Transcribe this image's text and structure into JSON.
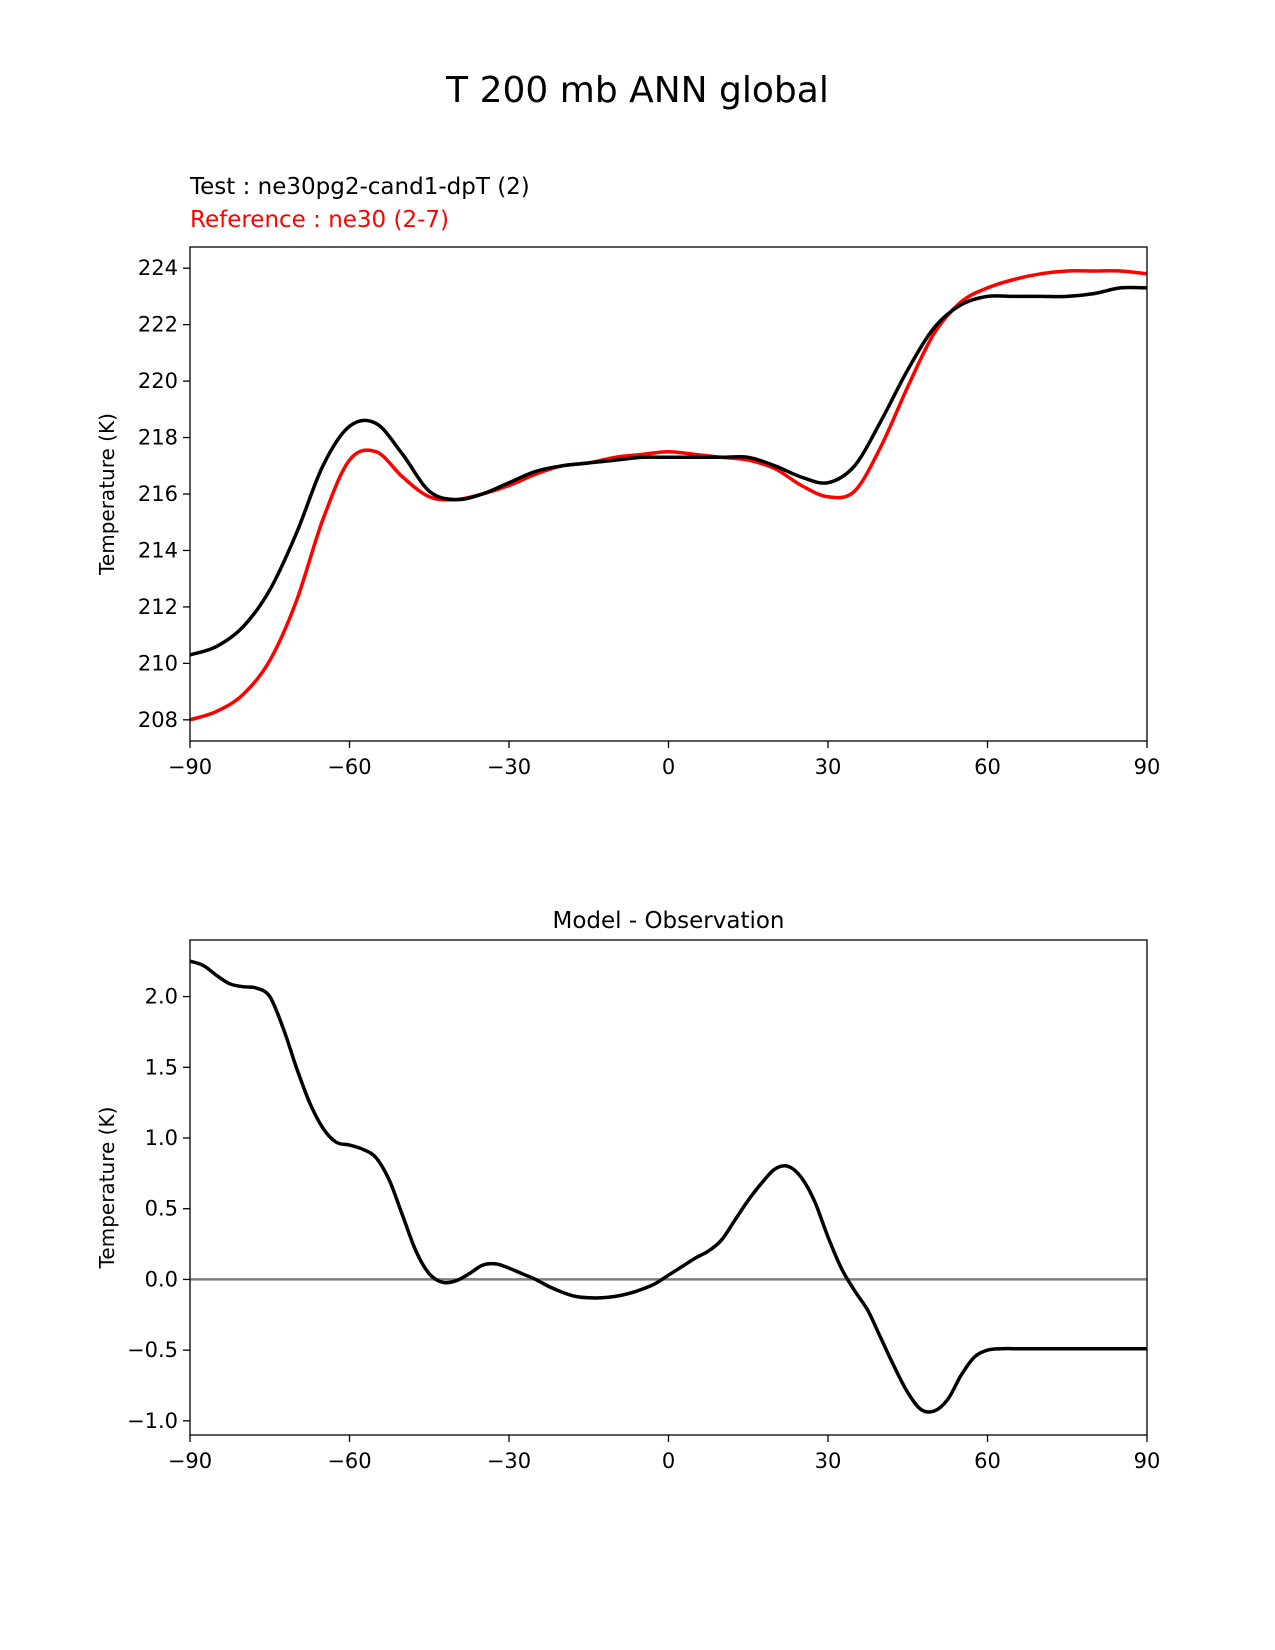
{
  "suptitle": "T 200 mb ANN global",
  "colors": {
    "test": "#000000",
    "reference": "#ff0000",
    "zero_line": "#808080"
  },
  "chart_data": [
    {
      "type": "line",
      "legend": {
        "test": "Test : ne30pg2-cand1-dpT (2)",
        "reference": "Reference : ne30 (2-7)"
      },
      "xlabel": "",
      "ylabel": "Temperature (K)",
      "xlim": [
        -90,
        90
      ],
      "ylim": [
        207.25,
        224.75
      ],
      "xticks": [
        -90,
        -60,
        -30,
        0,
        30,
        60,
        90
      ],
      "xtick_labels": [
        "−90",
        "−60",
        "−30",
        "0",
        "30",
        "60",
        "90"
      ],
      "yticks": [
        208,
        210,
        212,
        214,
        216,
        218,
        220,
        222,
        224
      ],
      "ytick_labels": [
        "208",
        "210",
        "212",
        "214",
        "216",
        "218",
        "220",
        "222",
        "224"
      ],
      "x": [
        -90,
        -85,
        -80,
        -75,
        -70,
        -65,
        -60,
        -55,
        -50,
        -45,
        -40,
        -35,
        -30,
        -25,
        -20,
        -15,
        -10,
        -5,
        0,
        5,
        10,
        15,
        20,
        25,
        30,
        35,
        40,
        45,
        50,
        55,
        60,
        65,
        70,
        75,
        80,
        85,
        90
      ],
      "series": [
        {
          "name": "Test : ne30pg2-cand1-dpT (2)",
          "color_key": "test",
          "values": [
            210.3,
            210.6,
            211.3,
            212.6,
            214.6,
            217.0,
            218.4,
            218.5,
            217.4,
            216.1,
            215.8,
            216.0,
            216.4,
            216.8,
            217.0,
            217.1,
            217.2,
            217.3,
            217.3,
            217.3,
            217.3,
            217.3,
            217.0,
            216.6,
            216.4,
            217.0,
            218.6,
            220.4,
            221.9,
            222.7,
            223.0,
            223.0,
            223.0,
            223.0,
            223.1,
            223.3,
            223.3
          ]
        },
        {
          "name": "Reference : ne30 (2-7)",
          "color_key": "reference",
          "values": [
            208.0,
            208.3,
            208.9,
            210.1,
            212.2,
            215.1,
            217.2,
            217.5,
            216.6,
            215.9,
            215.8,
            216.0,
            216.3,
            216.7,
            217.0,
            217.1,
            217.3,
            217.4,
            217.5,
            217.4,
            217.3,
            217.2,
            216.9,
            216.3,
            215.9,
            216.1,
            217.7,
            219.8,
            221.7,
            222.8,
            223.3,
            223.6,
            223.8,
            223.9,
            223.9,
            223.9,
            223.8
          ]
        }
      ]
    },
    {
      "type": "line",
      "title": "Model - Observation",
      "xlabel": "",
      "ylabel": "Temperature (K)",
      "xlim": [
        -90,
        90
      ],
      "ylim": [
        -1.1,
        2.4
      ],
      "xticks": [
        -90,
        -60,
        -30,
        0,
        30,
        60,
        90
      ],
      "xtick_labels": [
        "−90",
        "−60",
        "−30",
        "0",
        "30",
        "60",
        "90"
      ],
      "yticks": [
        -1.0,
        -0.5,
        0.0,
        0.5,
        1.0,
        1.5,
        2.0
      ],
      "ytick_labels": [
        "−1.0",
        "−0.5",
        "0.0",
        "0.5",
        "1.0",
        "1.5",
        "2.0"
      ],
      "zero_line": 0.0,
      "x": [
        -90,
        -87.5,
        -85,
        -82.5,
        -80,
        -77.5,
        -75,
        -72.5,
        -70,
        -67.5,
        -65,
        -62.5,
        -60,
        -57.5,
        -55,
        -52.5,
        -50,
        -47.5,
        -45,
        -42.5,
        -40,
        -37.5,
        -35,
        -32.5,
        -30,
        -27.5,
        -25,
        -22.5,
        -20,
        -17.5,
        -15,
        -12.5,
        -10,
        -7.5,
        -5,
        -2.5,
        0,
        2.5,
        5,
        7.5,
        10,
        12.5,
        15,
        17.5,
        20,
        22.5,
        25,
        27.5,
        30,
        32.5,
        35,
        37.5,
        40,
        42.5,
        45,
        47.5,
        50,
        52.5,
        55,
        57.5,
        60,
        62.5,
        65,
        67.5,
        70,
        72.5,
        75,
        77.5,
        80,
        82.5,
        85,
        87.5,
        90
      ],
      "series": [
        {
          "name": "Model - Observation",
          "color_key": "test",
          "values": [
            2.25,
            2.22,
            2.15,
            2.09,
            2.07,
            2.06,
            2.0,
            1.78,
            1.5,
            1.25,
            1.07,
            0.97,
            0.95,
            0.92,
            0.86,
            0.7,
            0.45,
            0.2,
            0.04,
            -0.02,
            -0.01,
            0.04,
            0.1,
            0.11,
            0.08,
            0.04,
            0.0,
            -0.05,
            -0.09,
            -0.12,
            -0.13,
            -0.13,
            -0.12,
            -0.1,
            -0.07,
            -0.03,
            0.03,
            0.09,
            0.15,
            0.2,
            0.28,
            0.42,
            0.56,
            0.68,
            0.78,
            0.8,
            0.72,
            0.55,
            0.3,
            0.08,
            -0.08,
            -0.22,
            -0.42,
            -0.62,
            -0.8,
            -0.92,
            -0.93,
            -0.85,
            -0.68,
            -0.55,
            -0.5,
            -0.49,
            -0.49,
            -0.49,
            -0.49,
            -0.49,
            -0.49,
            -0.49,
            -0.49,
            -0.49,
            -0.49,
            -0.49,
            -0.49
          ]
        }
      ]
    }
  ]
}
